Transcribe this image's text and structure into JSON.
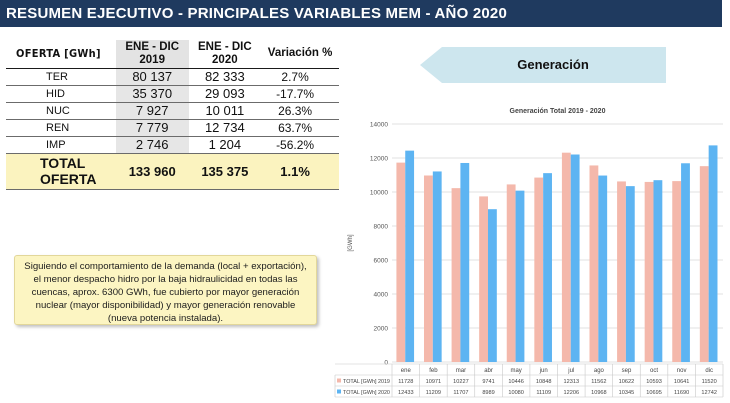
{
  "header": {
    "title": "RESUMEN EJECUTIVO - PRINCIPALES VARIABLES MEM -  AÑO 2020"
  },
  "table": {
    "headers": [
      "OFERTA [GWh]",
      "ENE - DIC 2019",
      "ENE - DIC 2020",
      "Variación %"
    ],
    "rows": [
      {
        "label": "TER",
        "v2019": "80 137",
        "v2020": "82 333",
        "var": "2.7%"
      },
      {
        "label": "HID",
        "v2019": "35 370",
        "v2020": "29 093",
        "var": "-17.7%"
      },
      {
        "label": "NUC",
        "v2019": "7 927",
        "v2020": "10 011",
        "var": "26.3%"
      },
      {
        "label": "REN",
        "v2019": "7 779",
        "v2020": "12 734",
        "var": "63.7%"
      },
      {
        "label": "IMP",
        "v2019": "2 746",
        "v2020": "1 204",
        "var": "-56.2%"
      }
    ],
    "total": {
      "label": "TOTAL OFERTA",
      "v2019": "133 960",
      "v2020": "135 375",
      "var": "1.1%"
    }
  },
  "note": {
    "text": "Siguiendo el comportamiento de la demanda (local + exportación), el menor despacho hidro por la baja hidraulicidad en todas las cuencas, aprox. 6300 GWh, fue cubierto por mayor generación nuclear (mayor disponibilidad) y mayor generación renovable (nueva potencia instalada)."
  },
  "section_label": "Generación",
  "colors": {
    "title_bar": "#1f3a5f",
    "series_2019": "#f4b8ab",
    "series_2020": "#5db4f2",
    "arrow": "#cde6ee",
    "total_row": "#fbf3bf"
  },
  "chart_data": {
    "type": "bar",
    "title": "Generación Total 2019 - 2020",
    "ylabel": "[GWh]",
    "ylim": [
      0,
      14000
    ],
    "yticks": [
      0,
      2000,
      4000,
      6000,
      8000,
      10000,
      12000,
      14000
    ],
    "categories": [
      "ene",
      "feb",
      "mar",
      "abr",
      "may",
      "jun",
      "jul",
      "ago",
      "sep",
      "oct",
      "nov",
      "dic"
    ],
    "series": [
      {
        "name": "TOTAL [GWh] 2019",
        "values": [
          11728,
          10971,
          10227,
          9741,
          10446,
          10848,
          12313,
          11562,
          10622,
          10593,
          10641,
          11520
        ]
      },
      {
        "name": "TOTAL [GWh] 2020",
        "values": [
          12433,
          11209,
          11707,
          8989,
          10080,
          11109,
          12206,
          10968,
          10345,
          10695,
          11690,
          12742
        ]
      }
    ],
    "grid": true,
    "legend": "data-table-below"
  }
}
